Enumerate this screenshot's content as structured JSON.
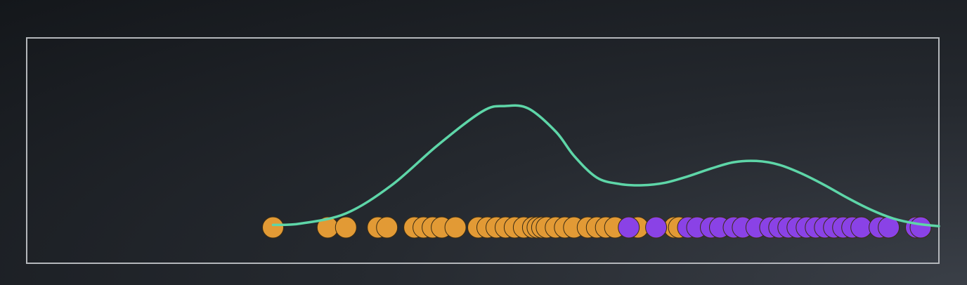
{
  "chart_data": {
    "type": "scatter",
    "title": "",
    "xlabel": "",
    "ylabel": "",
    "xlim": [
      0,
      100
    ],
    "grid": false,
    "legend": "none",
    "colors": {
      "background": "#1b1f24",
      "frame": "#b4b7bb",
      "curve": "#5ed6a8",
      "class_a": "#e29a35",
      "class_b": "#8a42e6",
      "point_stroke": "#3a2c14"
    },
    "series": [
      {
        "values": [
          27,
          33,
          35,
          38.5,
          39.5,
          42.5,
          43.5,
          44.5,
          45.5,
          47,
          49.5,
          50.5,
          51.5,
          52.5,
          53.5,
          54.5,
          55.5,
          56,
          56.5,
          57,
          58,
          59,
          60,
          61.5,
          62.5,
          63.5,
          64.5,
          67,
          71,
          71.5
        ]
      },
      {
        "values": [
          66,
          69,
          72.5,
          73.5,
          75,
          76,
          77.5,
          78.5,
          80,
          81.5,
          82.5,
          83.5,
          84.5,
          85.5,
          86.5,
          87.5,
          88.5,
          89.5,
          90.5,
          91.5,
          93.5,
          94.5,
          97.5,
          98
        ]
      }
    ],
    "density_curve": {
      "x": [
        27,
        30,
        35,
        40,
        45,
        50,
        52.5,
        55,
        58,
        60,
        62.5,
        65,
        67.5,
        70,
        72.5,
        75,
        77.5,
        80,
        82.5,
        85,
        87.5,
        90,
        92.5,
        95,
        97.5,
        100
      ],
      "y": [
        0.02,
        0.03,
        0.11,
        0.33,
        0.64,
        0.91,
        0.95,
        0.93,
        0.75,
        0.56,
        0.39,
        0.34,
        0.33,
        0.35,
        0.4,
        0.46,
        0.51,
        0.52,
        0.49,
        0.42,
        0.33,
        0.23,
        0.14,
        0.07,
        0.03,
        0.01
      ]
    }
  }
}
